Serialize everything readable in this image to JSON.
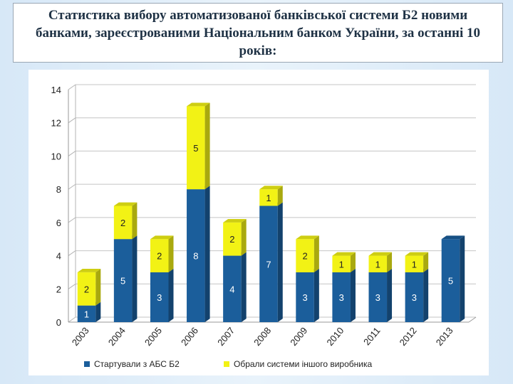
{
  "slide": {
    "title": "Статистика вибору автоматизованої банківської системи Б2 новими банками, зареєстрованими Національним банком України, за останні 10 років:"
  },
  "chart_data": {
    "type": "bar",
    "stacked": true,
    "title": "",
    "xlabel": "",
    "ylabel": "",
    "ylim": [
      0,
      14
    ],
    "yticks": [
      "0",
      "2",
      "4",
      "6",
      "8",
      "10",
      "12",
      "14"
    ],
    "categories": [
      "2003",
      "2004",
      "2005",
      "2006",
      "2007",
      "2008",
      "2009",
      "2010",
      "2011",
      "2012",
      "2013"
    ],
    "series": [
      {
        "name": "Стартували з АБС Б2",
        "color": "#1b5e9b",
        "values": [
          1,
          5,
          3,
          8,
          4,
          7,
          3,
          3,
          3,
          3,
          5
        ]
      },
      {
        "name": "Обрали системи іншого виробника",
        "color": "#f2f215",
        "values": [
          2,
          2,
          2,
          5,
          2,
          1,
          2,
          1,
          1,
          1,
          0
        ]
      }
    ],
    "legend": "bottom",
    "grid": true
  }
}
